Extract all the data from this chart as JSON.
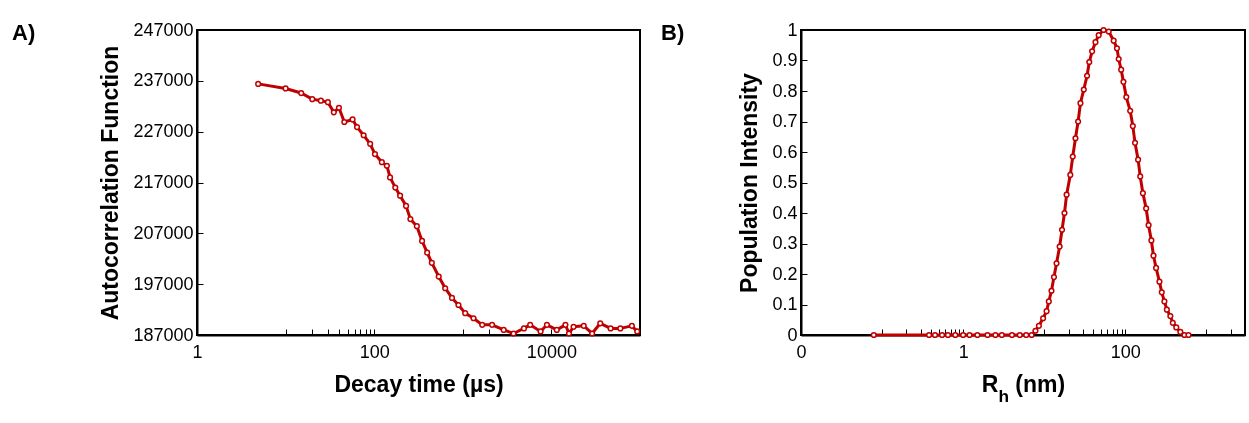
{
  "chart_data": [
    {
      "type": "line",
      "title": "A)",
      "xlabel": "Decay time (µs)",
      "ylabel": "Autocorrelation Function",
      "log": "x",
      "marker": "circle",
      "line_style": "solid",
      "xlim": [
        1,
        100000
      ],
      "xticks": [
        1,
        {
          "value": 10,
          "label": null
        },
        {
          "value": 20,
          "label": null
        },
        {
          "value": 30,
          "label": null
        },
        {
          "value": 40,
          "label": null
        },
        {
          "value": 50,
          "label": null
        },
        {
          "value": 60,
          "label": null
        },
        {
          "value": 70,
          "label": null
        },
        {
          "value": 80,
          "label": null
        },
        {
          "value": 90,
          "label": null
        },
        100,
        {
          "value": 1000,
          "label": null
        },
        {
          "value": 2000,
          "label": null
        },
        10000
      ],
      "ylim": [
        187000,
        247000
      ],
      "yticks": [
        187000,
        197000,
        207000,
        217000,
        227000,
        237000,
        247000
      ],
      "x": [
        4.9,
        10,
        15,
        20,
        25,
        30,
        35,
        40,
        46,
        57,
        64,
        76,
        90,
        102,
        122,
        139,
        151,
        173,
        196,
        229,
        256,
        303,
        347,
        396,
        447,
        535,
        633,
        755,
        893,
        1064,
        1321,
        1656,
        2139,
        2894,
        3740,
        4900,
        5760,
        7550,
        8900,
        11500,
        14400,
        15800,
        17800,
        23200,
        28800,
        35600,
        46600,
        60000,
        81000,
        93000
      ],
      "series": [
        {
          "color": "#c00000",
          "values": [
            236400,
            235500,
            234600,
            233400,
            233100,
            232800,
            230800,
            231700,
            228900,
            229400,
            227900,
            226300,
            224600,
            222600,
            221000,
            220300,
            218000,
            216000,
            214400,
            212400,
            209800,
            208400,
            205500,
            203200,
            201200,
            198500,
            196200,
            194300,
            192900,
            191300,
            190300,
            189000,
            189000,
            188000,
            187300,
            188300,
            189000,
            187700,
            189000,
            188000,
            189000,
            187300,
            188600,
            188800,
            187300,
            189300,
            188300,
            188300,
            188800,
            187700
          ]
        }
      ]
    },
    {
      "type": "line",
      "title": "B)",
      "xlabel": "R$_{h}$ (nm)",
      "ylabel": "Population Intensity",
      "log": "x",
      "marker": "circle",
      "line_style": "solid",
      "xlim": [
        0.01,
        3000
      ],
      "xticks": [
        {
          "value": 0.01,
          "label": "0"
        },
        {
          "value": 0.1,
          "label": null
        },
        {
          "value": 0.2,
          "label": null
        },
        {
          "value": 0.3,
          "label": null
        },
        {
          "value": 0.4,
          "label": null
        },
        {
          "value": 0.5,
          "label": null
        },
        {
          "value": 0.6,
          "label": null
        },
        {
          "value": 0.7,
          "label": null
        },
        {
          "value": 0.8,
          "label": null
        },
        {
          "value": 0.9,
          "label": null
        },
        1,
        {
          "value": 10,
          "label": null
        },
        {
          "value": 20,
          "label": null
        },
        {
          "value": 30,
          "label": null
        },
        {
          "value": 40,
          "label": null
        },
        {
          "value": 50,
          "label": null
        },
        {
          "value": 60,
          "label": null
        },
        {
          "value": 70,
          "label": null
        },
        {
          "value": 80,
          "label": null
        },
        {
          "value": 90,
          "label": null
        },
        100,
        {
          "value": 1000,
          "label": null
        },
        {
          "value": 2000,
          "label": null
        }
      ],
      "ylim": [
        0,
        1
      ],
      "yticks": [
        0,
        0.1,
        0.2,
        0.3,
        0.4,
        0.5,
        0.6,
        0.7,
        0.8,
        0.9,
        1
      ],
      "x": [
        0.079,
        0.38,
        0.45,
        0.55,
        0.65,
        0.8,
        1,
        1.2,
        1.5,
        2,
        2.5,
        3,
        4,
        5,
        6,
        7,
        7.8,
        8.6,
        9.7,
        10.7,
        11.4,
        12.3,
        13.2,
        14.2,
        15.5,
        16.6,
        17.8,
        18.9,
        21,
        22.5,
        24.3,
        26.2,
        28,
        30.8,
        33.8,
        36,
        39,
        42.9,
        47,
        54,
        62.5,
        72,
        79,
        83,
        89,
        95,
        103,
        115,
        124,
        132,
        144,
        153,
        165,
        181,
        194,
        210,
        223,
        240,
        264,
        282,
        304,
        326,
        360,
        386,
        426,
        478,
        537,
        603
      ],
      "series": [
        {
          "color": "#c00000",
          "values": [
            0,
            0,
            0,
            0,
            0,
            0,
            0,
            0,
            0,
            0,
            0,
            0,
            0,
            0,
            0,
            0,
            0.014,
            0.03,
            0.055,
            0.078,
            0.11,
            0.145,
            0.19,
            0.235,
            0.29,
            0.345,
            0.4,
            0.46,
            0.525,
            0.585,
            0.645,
            0.7,
            0.76,
            0.805,
            0.85,
            0.895,
            0.93,
            0.96,
            0.983,
            1,
            0.995,
            0.965,
            0.94,
            0.905,
            0.87,
            0.83,
            0.78,
            0.735,
            0.685,
            0.63,
            0.575,
            0.52,
            0.465,
            0.415,
            0.36,
            0.31,
            0.26,
            0.22,
            0.175,
            0.14,
            0.11,
            0.083,
            0.062,
            0.04,
            0.025,
            0.01,
            0,
            0
          ]
        }
      ]
    }
  ]
}
